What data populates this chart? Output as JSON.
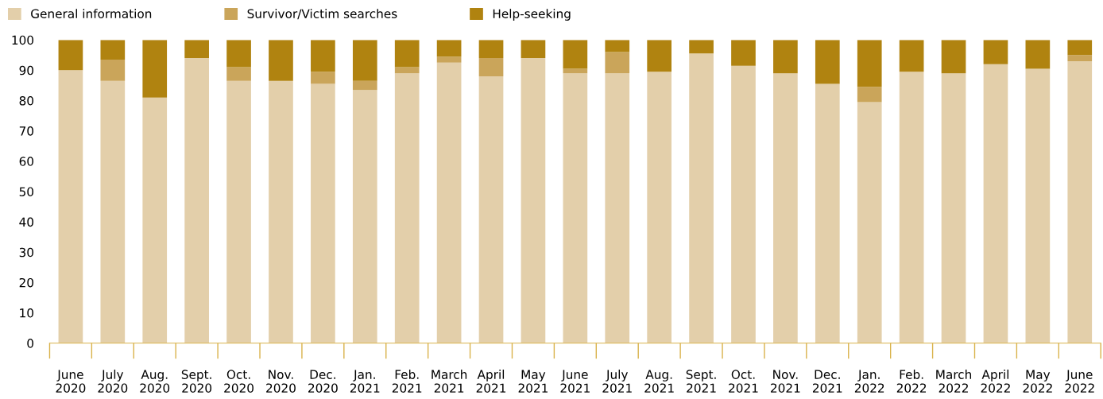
{
  "chart_data": {
    "type": "bar",
    "stacked": true,
    "legend": "top left",
    "grid": false,
    "categories": [
      "June\n2020",
      "July\n2020",
      "Aug.\n2020",
      "Sept.\n2020",
      "Oct.\n2020",
      "Nov.\n2020",
      "Dec.\n2020",
      "Jan.\n2021",
      "Feb.\n2021",
      "March\n2021",
      "April\n2021",
      "May\n2021",
      "June\n2021",
      "July\n2021",
      "Aug.\n2021",
      "Sept.\n2021",
      "Oct.\n2021",
      "Nov.\n2021",
      "Dec.\n2021",
      "Jan.\n2022",
      "Feb.\n2022",
      "March\n2022",
      "April\n2022",
      "May\n2022",
      "June\n2022"
    ],
    "ylim": [
      0,
      100
    ],
    "yticks": [
      0,
      10,
      20,
      30,
      40,
      50,
      60,
      70,
      80,
      90,
      100
    ],
    "series": [
      {
        "name": "General information",
        "color": "#e3cfaa",
        "values": [
          90,
          86.5,
          81,
          94,
          86.5,
          86.5,
          85.5,
          83.5,
          89,
          92.5,
          88,
          94,
          89,
          89,
          89.5,
          95.5,
          91.5,
          89,
          85.5,
          79.5,
          89.5,
          89,
          92,
          90.5,
          93
        ]
      },
      {
        "name": "Survivor/Victim searches",
        "color": "#caa55a",
        "values": [
          0,
          7,
          0,
          0,
          4.5,
          0,
          4,
          3,
          2,
          2,
          6,
          0,
          1.5,
          7,
          0,
          0,
          0,
          0,
          0,
          5,
          0,
          0,
          0,
          0,
          2
        ]
      },
      {
        "name": "Help-seeking",
        "color": "#b08310",
        "values": [
          10,
          6.5,
          19,
          6,
          9,
          13.5,
          10.5,
          13.5,
          9,
          5.5,
          6,
          6,
          9.5,
          4,
          10.5,
          4.5,
          8.5,
          11,
          14.5,
          15.5,
          10.5,
          11,
          8,
          9.5,
          5
        ]
      }
    ]
  }
}
